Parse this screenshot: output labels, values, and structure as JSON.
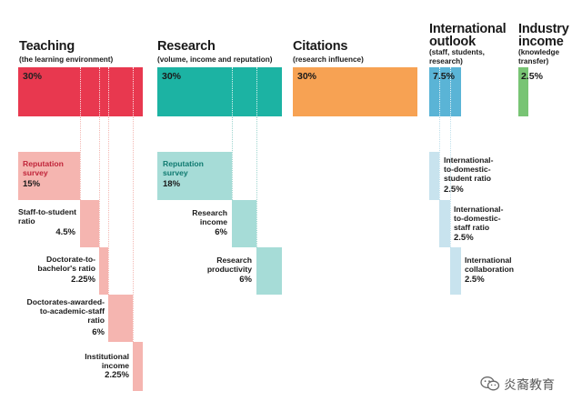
{
  "categories": {
    "teaching": {
      "title": "Teaching",
      "subtitle": "(the learning environment)",
      "value_label": "30%",
      "color": "#e8384f",
      "sub_color": "#f5b5b0",
      "items": [
        {
          "label": "Reputation\nsurvey",
          "value": "15%"
        },
        {
          "label": "Staff-to-student\nratio",
          "value": "4.5%"
        },
        {
          "label": "Doctorate-to-\nbachelor's ratio",
          "value": "2.25%"
        },
        {
          "label": "Doctorates-awarded-\nto-academic-staff\nratio",
          "value": "6%"
        },
        {
          "label": "Institutional\nincome",
          "value": "2.25%"
        }
      ]
    },
    "research": {
      "title": "Research",
      "subtitle": "(volume, income and reputation)",
      "value_label": "30%",
      "color": "#1cb3a3",
      "sub_color": "#a6dcd7",
      "items": [
        {
          "label": "Reputation\nsurvey",
          "value": "18%"
        },
        {
          "label": "Research\nincome",
          "value": "6%"
        },
        {
          "label": "Research\nproductivity",
          "value": "6%"
        }
      ]
    },
    "citations": {
      "title": "Citations",
      "subtitle": "(research influence)",
      "value_label": "30%",
      "color": "#f7a253"
    },
    "international": {
      "title": "International\noutlook",
      "subtitle": "(staff, students,\nresearch)",
      "value_label": "7.5%",
      "color": "#5ab4d6",
      "sub_color": "#c8e3ee",
      "items": [
        {
          "label": "International-\nto-domestic-\nstudent ratio",
          "value": "2.5%"
        },
        {
          "label": "International-\nto-domestic-\nstaff ratio",
          "value": "2.5%"
        },
        {
          "label": "International\ncollaboration",
          "value": "2.5%"
        }
      ]
    },
    "industry": {
      "title": "Industry\nincome",
      "subtitle": "(knowledge\ntransfer)",
      "value_label": "2.5%",
      "color": "#78c474"
    }
  },
  "watermark": "炎裔教育"
}
